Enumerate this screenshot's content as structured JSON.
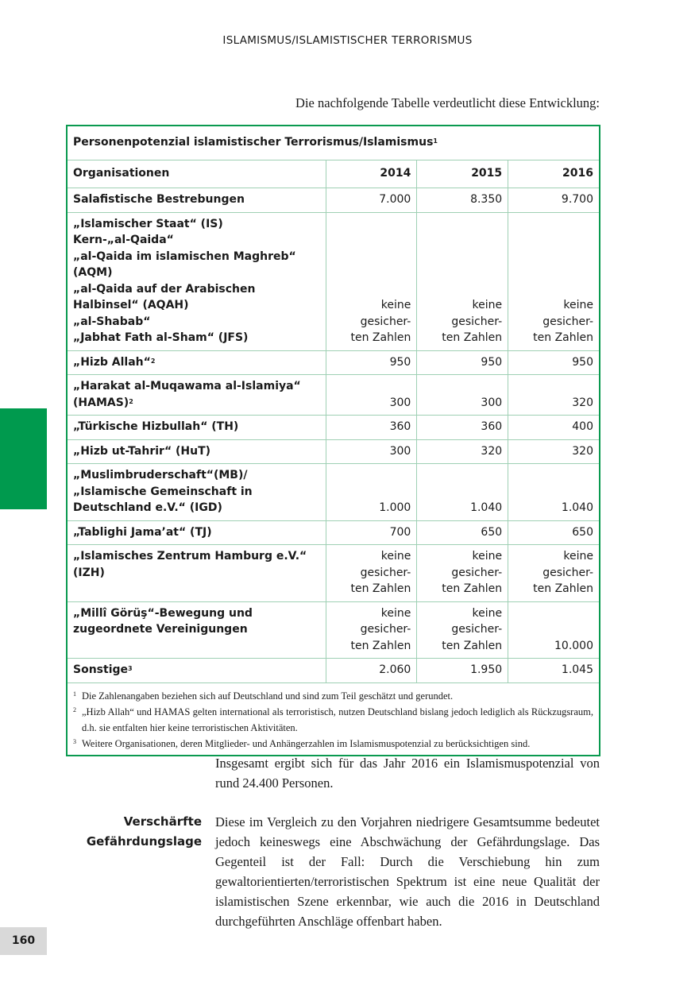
{
  "header": "ISLAMISMUS/ISLAMISTISCHER TERRORISMUS",
  "intro": "Die nachfolgende Tabelle verdeutlicht diese Entwicklung:",
  "table": {
    "title": "Personenpotenzial islamistischer Terrorismus/Islamismus",
    "title_sup": "1",
    "columns": [
      "Organisationen",
      "2014",
      "2015",
      "2016"
    ],
    "rows": [
      {
        "org": "Salafistische Bestrebungen",
        "sup": "",
        "v": [
          "7.000",
          "8.350",
          "9.700"
        ]
      },
      {
        "org": "„Islamischer Staat“ (IS)\nKern-„al-Qaida“\n„al-Qaida im islamischen Maghreb“ (AQM)\n„al-Qaida auf der Arabischen Halbinsel“ (AQAH)\n„al-Shabab“\n„Jabhat Fath al-Sham“ (JFS)",
        "sup": "",
        "v": [
          "keine gesicher-\nten Zahlen",
          "keine gesicher-\nten Zahlen",
          "keine gesicher-\nten Zahlen"
        ]
      },
      {
        "org": "„Hizb Allah“",
        "sup": "2",
        "v": [
          "950",
          "950",
          "950"
        ]
      },
      {
        "org": "„Harakat al-Muqawama al-Islamiya“ (HAMAS)",
        "sup": "2",
        "v": [
          "300",
          "300",
          "320"
        ]
      },
      {
        "org": "„Türkische Hizbullah“ (TH)",
        "sup": "",
        "v": [
          "360",
          "360",
          "400"
        ]
      },
      {
        "org": "„Hizb ut-Tahrir“ (HuT)",
        "sup": "",
        "v": [
          "300",
          "320",
          "320"
        ]
      },
      {
        "org": "„Muslimbruderschaft“(MB)/„Islamische Gemeinschaft in Deutschland e.V.“ (IGD)",
        "sup": "",
        "v": [
          "1.000",
          "1.040",
          "1.040"
        ]
      },
      {
        "org": "„Tablighi Jama’at“ (TJ)",
        "sup": "",
        "v": [
          "700",
          "650",
          "650"
        ]
      },
      {
        "org": "„Islamisches Zentrum Hamburg e.V.“ (IZH)",
        "sup": "",
        "v": [
          "keine gesicher-\nten Zahlen",
          "keine gesicher-\nten Zahlen",
          "keine gesicher-\nten Zahlen"
        ]
      },
      {
        "org": "„Millî Görüş“-Bewegung und zugeordnete Vereinigungen",
        "sup": "",
        "v": [
          "keine gesicher-\nten Zahlen",
          "keine gesicher-\nten Zahlen",
          "10.000"
        ]
      },
      {
        "org": "Sonstige",
        "sup": "3",
        "v": [
          "2.060",
          "1.950",
          "1.045"
        ]
      }
    ],
    "footnotes": [
      {
        "mark": "1",
        "text": "Die Zahlenangaben beziehen sich auf Deutschland und sind zum Teil geschätzt und gerundet."
      },
      {
        "mark": "2",
        "text": "„Hizb Allah“ und HAMAS gelten international als terroristisch, nutzen Deutschland bislang jedoch lediglich als Rückzugsraum, d.h. sie entfalten hier keine terroristischen Aktivitäten."
      },
      {
        "mark": "3",
        "text": "Weitere Organisationen, deren Mitglieder- und Anhängerzahlen im Islamismuspotenzial zu berücksichtigen sind."
      }
    ]
  },
  "summary": "Insgesamt ergibt sich für das Jahr 2016 ein Islamismuspotenzial von rund 24.400 Personen.",
  "side_heading": "Verschärfte Gefährdungslage",
  "paragraph": "Diese im Vergleich zu den Vorjahren niedrigere Gesamtsumme bedeutet jedoch keineswegs eine Abschwächung der Gefährdungslage. Das Gegenteil ist der Fall: Durch die Verschiebung hin zum gewaltorientierten/terroristischen Spektrum ist eine neue Qualität der islamistischen Szene erkennbar, wie auch die 2016 in Deutschland durchgeführten Anschläge offenbart haben.",
  "page_number": "160",
  "colors": {
    "accent": "#009a4e",
    "table_border": "#0a9a50",
    "page_tab": "#d9d9d9"
  }
}
